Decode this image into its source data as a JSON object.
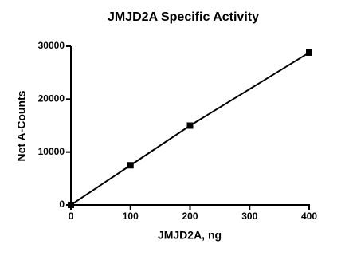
{
  "chart_data": {
    "type": "line",
    "title": "JMJD2A Specific Activity",
    "x_label": "JMJD2A, ng",
    "y_label": "Net A-Counts",
    "x": [
      0,
      100,
      200,
      400
    ],
    "values": [
      0,
      7500,
      15000,
      28800
    ],
    "color": "#000000",
    "xlim": [
      0,
      400
    ],
    "xticks": [
      0,
      100,
      200,
      300,
      400
    ],
    "ylim": [
      0,
      30000
    ],
    "yticks": [
      0,
      10000,
      20000,
      30000
    ],
    "grid": false
  }
}
